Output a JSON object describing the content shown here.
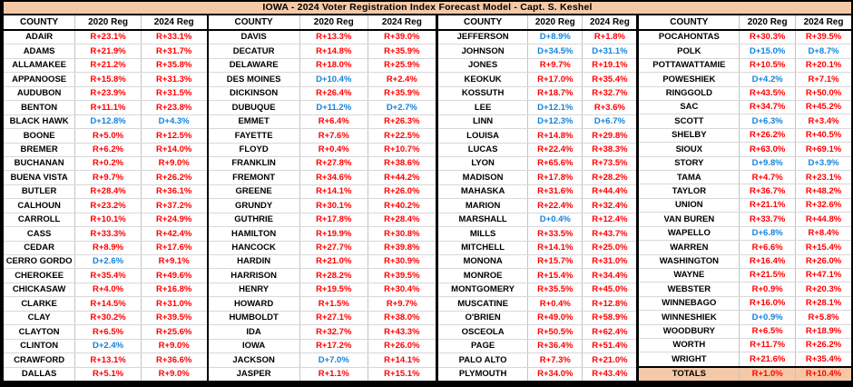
{
  "title": "IOWA -  2024 Voter Registration Index Forecast Model - Capt. S. Keshel",
  "colors": {
    "republican_red": "#FF0000",
    "democrat_blue": "#1483DB",
    "header_peach": "#F5C9A8",
    "border_black": "#000000"
  },
  "chart_data": {
    "type": "table",
    "title": "IOWA -  2024 Voter Registration Index Forecast Model - Capt. S. Keshel",
    "column_headers": [
      "COUNTY",
      "2020 Reg",
      "2024 Reg"
    ],
    "groups": [
      [
        [
          "ADAIR",
          "R+23.1%",
          "R+33.1%"
        ],
        [
          "ADAMS",
          "R+21.9%",
          "R+31.7%"
        ],
        [
          "ALLAMAKEE",
          "R+21.2%",
          "R+35.8%"
        ],
        [
          "APPANOOSE",
          "R+15.8%",
          "R+31.3%"
        ],
        [
          "AUDUBON",
          "R+23.9%",
          "R+31.5%"
        ],
        [
          "BENTON",
          "R+11.1%",
          "R+23.8%"
        ],
        [
          "BLACK HAWK",
          "D+12.8%",
          "D+4.3%"
        ],
        [
          "BOONE",
          "R+5.0%",
          "R+12.5%"
        ],
        [
          "BREMER",
          "R+6.2%",
          "R+14.0%"
        ],
        [
          "BUCHANAN",
          "R+0.2%",
          "R+9.0%"
        ],
        [
          "BUENA VISTA",
          "R+9.7%",
          "R+26.2%"
        ],
        [
          "BUTLER",
          "R+28.4%",
          "R+36.1%"
        ],
        [
          "CALHOUN",
          "R+23.2%",
          "R+37.2%"
        ],
        [
          "CARROLL",
          "R+10.1%",
          "R+24.9%"
        ],
        [
          "CASS",
          "R+33.3%",
          "R+42.4%"
        ],
        [
          "CEDAR",
          "R+8.9%",
          "R+17.6%"
        ],
        [
          "CERRO GORDO",
          "D+2.6%",
          "R+9.1%"
        ],
        [
          "CHEROKEE",
          "R+35.4%",
          "R+49.6%"
        ],
        [
          "CHICKASAW",
          "R+4.0%",
          "R+16.8%"
        ],
        [
          "CLARKE",
          "R+14.5%",
          "R+31.0%"
        ],
        [
          "CLAY",
          "R+30.2%",
          "R+39.5%"
        ],
        [
          "CLAYTON",
          "R+6.5%",
          "R+25.6%"
        ],
        [
          "CLINTON",
          "D+2.4%",
          "R+9.0%"
        ],
        [
          "CRAWFORD",
          "R+13.1%",
          "R+36.6%"
        ],
        [
          "DALLAS",
          "R+5.1%",
          "R+9.0%"
        ]
      ],
      [
        [
          "DAVIS",
          "R+13.3%",
          "R+39.0%"
        ],
        [
          "DECATUR",
          "R+14.8%",
          "R+35.9%"
        ],
        [
          "DELAWARE",
          "R+18.0%",
          "R+25.9%"
        ],
        [
          "DES MOINES",
          "D+10.4%",
          "R+2.4%"
        ],
        [
          "DICKINSON",
          "R+26.4%",
          "R+35.9%"
        ],
        [
          "DUBUQUE",
          "D+11.2%",
          "D+2.7%"
        ],
        [
          "EMMET",
          "R+6.4%",
          "R+26.3%"
        ],
        [
          "FAYETTE",
          "R+7.6%",
          "R+22.5%"
        ],
        [
          "FLOYD",
          "R+0.4%",
          "R+10.7%"
        ],
        [
          "FRANKLIN",
          "R+27.8%",
          "R+38.6%"
        ],
        [
          "FREMONT",
          "R+34.6%",
          "R+44.2%"
        ],
        [
          "GREENE",
          "R+14.1%",
          "R+26.0%"
        ],
        [
          "GRUNDY",
          "R+30.1%",
          "R+40.2%"
        ],
        [
          "GUTHRIE",
          "R+17.8%",
          "R+28.4%"
        ],
        [
          "HAMILTON",
          "R+19.9%",
          "R+30.8%"
        ],
        [
          "HANCOCK",
          "R+27.7%",
          "R+39.8%"
        ],
        [
          "HARDIN",
          "R+21.0%",
          "R+30.9%"
        ],
        [
          "HARRISON",
          "R+28.2%",
          "R+39.5%"
        ],
        [
          "HENRY",
          "R+19.5%",
          "R+30.4%"
        ],
        [
          "HOWARD",
          "R+1.5%",
          "R+9.7%"
        ],
        [
          "HUMBOLDT",
          "R+27.1%",
          "R+38.0%"
        ],
        [
          "IDA",
          "R+32.7%",
          "R+43.3%"
        ],
        [
          "IOWA",
          "R+17.2%",
          "R+26.0%"
        ],
        [
          "JACKSON",
          "D+7.0%",
          "R+14.1%"
        ],
        [
          "JASPER",
          "R+1.1%",
          "R+15.1%"
        ]
      ],
      [
        [
          "JEFFERSON",
          "D+8.9%",
          "R+1.8%"
        ],
        [
          "JOHNSON",
          "D+34.5%",
          "D+31.1%"
        ],
        [
          "JONES",
          "R+9.7%",
          "R+19.1%"
        ],
        [
          "KEOKUK",
          "R+17.0%",
          "R+35.4%"
        ],
        [
          "KOSSUTH",
          "R+18.7%",
          "R+32.7%"
        ],
        [
          "LEE",
          "D+12.1%",
          "R+3.6%"
        ],
        [
          "LINN",
          "D+12.3%",
          "D+6.7%"
        ],
        [
          "LOUISA",
          "R+14.8%",
          "R+29.8%"
        ],
        [
          "LUCAS",
          "R+22.4%",
          "R+38.3%"
        ],
        [
          "LYON",
          "R+65.6%",
          "R+73.5%"
        ],
        [
          "MADISON",
          "R+17.8%",
          "R+28.2%"
        ],
        [
          "MAHASKA",
          "R+31.6%",
          "R+44.4%"
        ],
        [
          "MARION",
          "R+22.4%",
          "R+32.4%"
        ],
        [
          "MARSHALL",
          "D+0.4%",
          "R+12.4%"
        ],
        [
          "MILLS",
          "R+33.5%",
          "R+43.7%"
        ],
        [
          "MITCHELL",
          "R+14.1%",
          "R+25.0%"
        ],
        [
          "MONONA",
          "R+15.7%",
          "R+31.0%"
        ],
        [
          "MONROE",
          "R+15.4%",
          "R+34.4%"
        ],
        [
          "MONTGOMERY",
          "R+35.5%",
          "R+45.0%"
        ],
        [
          "MUSCATINE",
          "R+0.4%",
          "R+12.8%"
        ],
        [
          "O'BRIEN",
          "R+49.0%",
          "R+58.9%"
        ],
        [
          "OSCEOLA",
          "R+50.5%",
          "R+62.4%"
        ],
        [
          "PAGE",
          "R+36.4%",
          "R+51.4%"
        ],
        [
          "PALO ALTO",
          "R+7.3%",
          "R+21.0%"
        ],
        [
          "PLYMOUTH",
          "R+34.0%",
          "R+43.4%"
        ]
      ],
      [
        [
          "POCAHONTAS",
          "R+30.3%",
          "R+39.5%"
        ],
        [
          "POLK",
          "D+15.0%",
          "D+8.7%"
        ],
        [
          "POTTAWATTAMIE",
          "R+10.5%",
          "R+20.1%"
        ],
        [
          "POWESHIEK",
          "D+4.2%",
          "R+7.1%"
        ],
        [
          "RINGGOLD",
          "R+43.5%",
          "R+50.0%"
        ],
        [
          "SAC",
          "R+34.7%",
          "R+45.2%"
        ],
        [
          "SCOTT",
          "D+6.3%",
          "R+3.4%"
        ],
        [
          "SHELBY",
          "R+26.2%",
          "R+40.5%"
        ],
        [
          "SIOUX",
          "R+63.0%",
          "R+69.1%"
        ],
        [
          "STORY",
          "D+9.8%",
          "D+3.9%"
        ],
        [
          "TAMA",
          "R+4.7%",
          "R+23.1%"
        ],
        [
          "TAYLOR",
          "R+36.7%",
          "R+48.2%"
        ],
        [
          "UNION",
          "R+21.1%",
          "R+32.6%"
        ],
        [
          "VAN BUREN",
          "R+33.7%",
          "R+44.8%"
        ],
        [
          "WAPELLO",
          "D+6.8%",
          "R+8.4%"
        ],
        [
          "WARREN",
          "R+6.6%",
          "R+15.4%"
        ],
        [
          "WASHINGTON",
          "R+16.4%",
          "R+26.0%"
        ],
        [
          "WAYNE",
          "R+21.5%",
          "R+47.1%"
        ],
        [
          "WEBSTER",
          "R+0.9%",
          "R+20.3%"
        ],
        [
          "WINNEBAGO",
          "R+16.0%",
          "R+28.1%"
        ],
        [
          "WINNESHIEK",
          "D+0.9%",
          "R+5.8%"
        ],
        [
          "WOODBURY",
          "R+6.5%",
          "R+18.9%"
        ],
        [
          "WORTH",
          "R+11.7%",
          "R+26.2%"
        ],
        [
          "WRIGHT",
          "R+21.6%",
          "R+35.4%"
        ]
      ]
    ],
    "totals_row": [
      "TOTALS",
      "R+1.0%",
      "R+10.4%"
    ]
  }
}
